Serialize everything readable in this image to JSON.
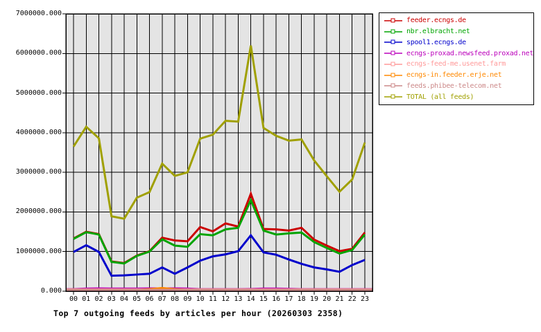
{
  "chart_data": {
    "type": "line",
    "title": "Top 7 outgoing feeds by articles per hour (20260303 2358)",
    "xlabel": "",
    "ylabel": "",
    "x": [
      "00",
      "01",
      "02",
      "03",
      "04",
      "05",
      "06",
      "07",
      "08",
      "09",
      "10",
      "11",
      "12",
      "13",
      "14",
      "15",
      "16",
      "17",
      "18",
      "19",
      "20",
      "21",
      "22",
      "23"
    ],
    "ylim": [
      0,
      7000000
    ],
    "y_ticks": [
      {
        "value": 0,
        "label": "0.000"
      },
      {
        "value": 1000000,
        "label": "1000000.000"
      },
      {
        "value": 2000000,
        "label": "2000000.000"
      },
      {
        "value": 3000000,
        "label": "3000000.000"
      },
      {
        "value": 4000000,
        "label": "4000000.000"
      },
      {
        "value": 5000000,
        "label": "5000000.000"
      },
      {
        "value": 6000000,
        "label": "6000000.000"
      },
      {
        "value": 7000000,
        "label": "7000000.000"
      }
    ],
    "grid": true,
    "legend_position": "top-right",
    "plot_bg_color": "#e4e4e4",
    "grid_color": "#000000",
    "series": [
      {
        "name": "feeder.ecngs.de",
        "color": "#cc0000",
        "extend": false,
        "values": [
          1330000,
          1500000,
          1440000,
          750000,
          710000,
          900000,
          1010000,
          1350000,
          1280000,
          1260000,
          1620000,
          1510000,
          1710000,
          1630000,
          2460000,
          1570000,
          1560000,
          1530000,
          1600000,
          1300000,
          1150000,
          1010000,
          1070000,
          1480000
        ]
      },
      {
        "name": "nbr.elbracht.net",
        "color": "#00a400",
        "extend": false,
        "values": [
          1320000,
          1490000,
          1430000,
          740000,
          700000,
          890000,
          1000000,
          1310000,
          1150000,
          1120000,
          1440000,
          1410000,
          1560000,
          1600000,
          2300000,
          1530000,
          1430000,
          1460000,
          1480000,
          1240000,
          1090000,
          950000,
          1040000,
          1430000
        ]
      },
      {
        "name": "spool1.ecngs.de",
        "color": "#0000cc",
        "extend": false,
        "values": [
          990000,
          1160000,
          990000,
          390000,
          400000,
          420000,
          440000,
          600000,
          440000,
          600000,
          770000,
          880000,
          930000,
          1010000,
          1410000,
          980000,
          920000,
          800000,
          690000,
          600000,
          550000,
          490000,
          660000,
          790000
        ]
      },
      {
        "name": "ecngs-proxad.newsfeed.proxad.net",
        "color": "#bb00bb",
        "extend": true,
        "values": [
          50000,
          65000,
          70000,
          65000,
          65000,
          65000,
          70000,
          70000,
          70000,
          65000,
          50000,
          50000,
          50000,
          50000,
          55000,
          65000,
          65000,
          60000,
          50000,
          50000,
          50000,
          50000,
          50000,
          50000
        ]
      },
      {
        "name": "ecngs-feed-me.usenet.farm",
        "color": "#ff9999",
        "extend": true,
        "values": [
          45000,
          45000,
          45000,
          45000,
          45000,
          45000,
          45000,
          45000,
          45000,
          45000,
          45000,
          45000,
          45000,
          45000,
          45000,
          45000,
          45000,
          45000,
          45000,
          45000,
          45000,
          45000,
          45000,
          45000
        ]
      },
      {
        "name": "ecngs-in.feeder.erje.net",
        "color": "#ff8800",
        "extend": true,
        "values": [
          30000,
          30000,
          30000,
          30000,
          30000,
          30000,
          50000,
          80000,
          50000,
          30000,
          30000,
          30000,
          30000,
          30000,
          30000,
          30000,
          30000,
          30000,
          30000,
          30000,
          30000,
          30000,
          30000,
          30000
        ]
      },
      {
        "name": "feeds.phibee-telecom.net",
        "color": "#cc8888",
        "extend": true,
        "values": [
          35000,
          35000,
          35000,
          35000,
          35000,
          35000,
          35000,
          35000,
          35000,
          35000,
          35000,
          35000,
          35000,
          35000,
          35000,
          35000,
          35000,
          35000,
          35000,
          35000,
          35000,
          35000,
          35000,
          35000
        ]
      },
      {
        "name": "TOTAL (all feeds)",
        "color": "#a0a000",
        "extend": false,
        "values": [
          3650000,
          4150000,
          3860000,
          1890000,
          1830000,
          2360000,
          2500000,
          3220000,
          2910000,
          3000000,
          3850000,
          3950000,
          4300000,
          4280000,
          6200000,
          4120000,
          3920000,
          3800000,
          3830000,
          3300000,
          2900000,
          2510000,
          2820000,
          3750000
        ]
      }
    ]
  }
}
